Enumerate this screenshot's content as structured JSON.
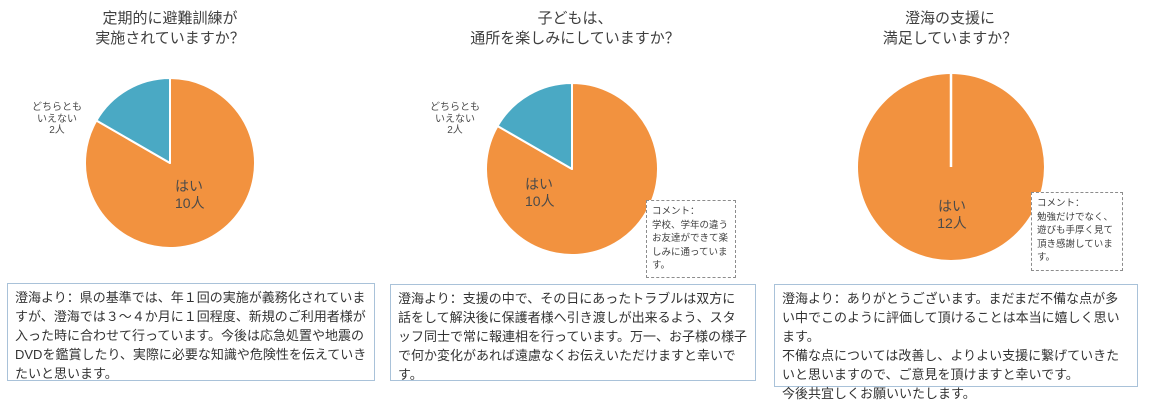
{
  "page": {
    "background": "#ffffff",
    "accent_orange": "#F2923F",
    "accent_teal": "#4AA9C4",
    "title_color": "#3f3f3f",
    "response_border_color": "#a9c2d9",
    "comment_border_color": "#8c8c8c"
  },
  "chart_data": [
    {
      "type": "pie",
      "title": "定期的に避難訓練が\n実施されていますか？",
      "categories": [
        "はい",
        "どちらともいえない"
      ],
      "values": [
        10,
        2
      ],
      "unit": "人",
      "colors": [
        "#F2923F",
        "#4AA9C4"
      ],
      "slice_names": [
        "yes",
        "neutral"
      ],
      "start_angle": "top",
      "direction": "clockwise",
      "legend": "none",
      "labels": {
        "yes": "はい\n10人",
        "neutral": "どちらとも\nいえない\n2人"
      },
      "comment": null
    },
    {
      "type": "pie",
      "title": "子どもは、\n通所を楽しみにしていますか？",
      "categories": [
        "はい",
        "どちらともいえない"
      ],
      "values": [
        10,
        2
      ],
      "unit": "人",
      "colors": [
        "#F2923F",
        "#4AA9C4"
      ],
      "slice_names": [
        "yes",
        "neutral"
      ],
      "start_angle": "top",
      "direction": "clockwise",
      "legend": "none",
      "labels": {
        "yes": "はい\n10人",
        "neutral": "どちらとも\nいえない\n2人"
      },
      "comment": "コメント：\n学校、学年の違う\nお友達ができて楽\nしみに通っていま\nす。"
    },
    {
      "type": "pie",
      "title": "澄海の支援に\n満足していますか？",
      "categories": [
        "はい"
      ],
      "values": [
        12
      ],
      "unit": "人",
      "colors": [
        "#F2923F"
      ],
      "slice_names": [
        "yes"
      ],
      "start_angle": "top",
      "direction": "clockwise",
      "legend": "none",
      "labels": {
        "yes": "はい\n12人"
      },
      "comment": "コメント：\n勉強だけでなく、\n遊びも手厚く見て\n頂き感謝していま\nす。"
    }
  ],
  "responses": [
    {
      "text": "澄海より：県の基準では、年１回の実施が義務化されていますが、澄海では３～４か月に１回程度、新規のご利用者様が入った時に合わせて行っています。今後は応急処置や地震のDVDを鑑賞したり、実際に必要な知識や危険性を伝えていきたいと思います。"
    },
    {
      "text": "澄海より：支援の中で、その日にあったトラブルは双方に話をして解決後に保護者様へ引き渡しが出来るよう、スタッフ同士で常に報連相を行っています。万一、お子様の様子で何か変化があれば遠慮なくお伝えいただけますと幸いです。"
    },
    {
      "text": "澄海より：ありがとうございます。まだまだ不備な点が多い中でこのように評価して頂けることは本当に嬉しく思います。\n不備な点については改善し、よりよい支援に繋げていきたいと思いますので、ご意見を頂けますと幸いです。\n今後共宜しくお願いいたします。"
    }
  ]
}
